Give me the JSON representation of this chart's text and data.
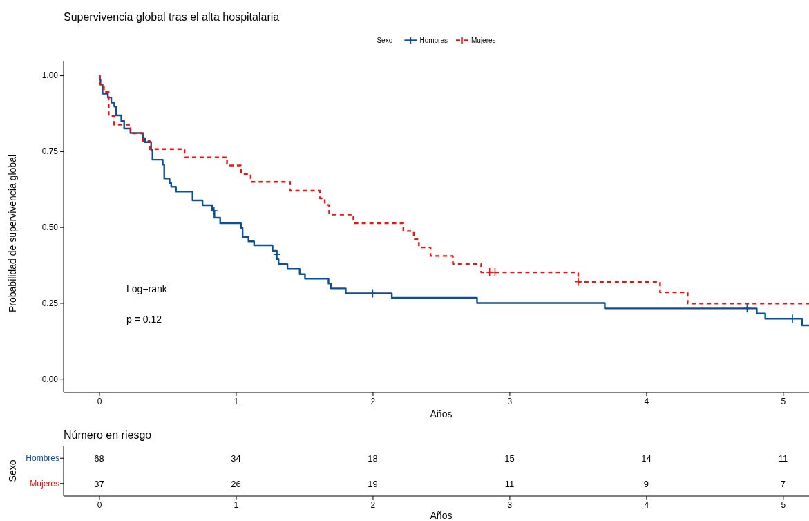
{
  "chart_data": [
    {
      "type": "step",
      "title": "Supervivencia global tras el alta hospitalaria",
      "xlabel": "Años",
      "ylabel": "Probabilidad de supervivencia global",
      "legend_title": "Sexo",
      "legend": "top",
      "grid": false,
      "xlim": [
        -0.26,
        5.19
      ],
      "xticks": [
        0,
        1,
        2,
        3,
        4,
        5
      ],
      "ylim": [
        -0.045,
        1.048
      ],
      "yticks": [
        {
          "value": 0,
          "label": "0.00"
        },
        {
          "value": 0.25,
          "label": "0.25"
        },
        {
          "value": 0.5,
          "label": "0.50"
        },
        {
          "value": 0.75,
          "label": "0.75"
        },
        {
          "value": 1,
          "label": "1.00"
        }
      ],
      "annotations": [
        "Log−rank",
        "p = 0.12"
      ],
      "series": [
        {
          "name": "Hombres",
          "color": "#0b4f95",
          "line_style": "solid",
          "x": [
            0,
            0.005,
            0.01,
            0.025,
            0.064,
            0.089,
            0.111,
            0.123,
            0.162,
            0.183,
            0.229,
            0.32,
            0.335,
            0.38,
            0.39,
            0.465,
            0.476,
            0.515,
            0.527,
            0.562,
            0.683,
            0.756,
            0.827,
            0.843,
            0.885,
            1.037,
            1.049,
            1.092,
            1.133,
            1.268,
            1.298,
            1.312,
            1.377,
            1.466,
            1.505,
            1.677,
            1.694,
            1.803,
            2.14,
            2.763,
            3.697,
            4.808,
            4.87,
            5.14,
            5.19
          ],
          "values": [
            1,
            0.986,
            0.97,
            0.94,
            0.927,
            0.91,
            0.897,
            0.868,
            0.85,
            0.825,
            0.81,
            0.793,
            0.78,
            0.755,
            0.722,
            0.706,
            0.66,
            0.645,
            0.633,
            0.617,
            0.588,
            0.572,
            0.554,
            0.531,
            0.513,
            0.497,
            0.468,
            0.453,
            0.44,
            0.422,
            0.394,
            0.378,
            0.362,
            0.345,
            0.33,
            0.314,
            0.298,
            0.282,
            0.267,
            0.25,
            0.232,
            0.215,
            0.198,
            0.176,
            0.176
          ]
        },
        {
          "name": "Mujeres",
          "color": "#ee1111",
          "line_style": "dashed",
          "x": [
            0,
            0.005,
            0.035,
            0.07,
            0.11,
            0.23,
            0.32,
            0.37,
            0.625,
            0.935,
            1.037,
            1.108,
            1.396,
            1.615,
            1.65,
            1.682,
            1.859,
            2.224,
            2.3,
            2.338,
            2.423,
            2.586,
            2.793,
            3.503,
            4.101,
            4.303,
            5.19
          ],
          "values": [
            1,
            0.97,
            0.945,
            0.866,
            0.837,
            0.809,
            0.784,
            0.757,
            0.73,
            0.703,
            0.675,
            0.649,
            0.62,
            0.595,
            0.573,
            0.541,
            0.513,
            0.487,
            0.46,
            0.433,
            0.405,
            0.379,
            0.351,
            0.32,
            0.285,
            0.248,
            0.248
          ]
        },
        {
          "type": "scatter",
          "marker": "cross",
          "color": "#0b4f95",
          "x": [
            0.84,
            1.3,
            2.0,
            4.737,
            5.069
          ],
          "values": [
            0.554,
            0.41,
            0.282,
            0.232,
            0.198
          ]
        },
        {
          "type": "scatter",
          "marker": "cross",
          "color": "#ee1111",
          "x": [
            2.855,
            2.894,
            3.503
          ],
          "values": [
            0.351,
            0.351,
            0.32
          ]
        }
      ]
    },
    {
      "type": "heatmap",
      "title": "Número en riesgo",
      "xlabel": "Años",
      "ylabel": "Sexo",
      "data_labels": true,
      "xlim": [
        -0.26,
        5.19
      ],
      "xticks": [
        0,
        1,
        2,
        3,
        4,
        5
      ],
      "x": [
        0,
        1,
        2,
        3,
        4,
        5
      ],
      "y_categories": [
        "Hombres",
        "Mujeres"
      ],
      "colors": [
        "#0b4f95",
        "#ee1111"
      ],
      "cells": [
        [
          68,
          34,
          18,
          15,
          14,
          11
        ],
        [
          37,
          26,
          19,
          11,
          9,
          7
        ]
      ]
    }
  ]
}
